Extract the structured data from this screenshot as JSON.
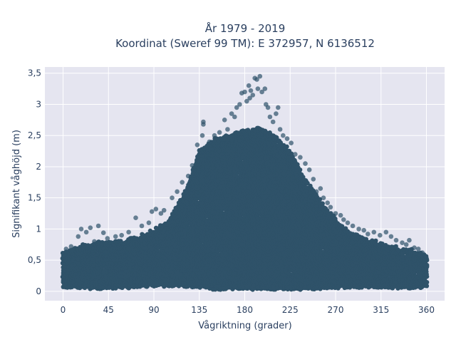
{
  "chart_data": {
    "type": "scatter",
    "title": "År 1979 - 2019",
    "subtitle": "Koordinat (Sweref 99 TM): E 372957, N 6136512",
    "xlabel": "Vågriktning (grader)",
    "ylabel": "Signifikant våghöjd (m)",
    "xlim": [
      -18,
      378
    ],
    "ylim": [
      -0.15,
      3.6
    ],
    "xticks": [
      0,
      45,
      90,
      135,
      180,
      225,
      270,
      315,
      360
    ],
    "xtick_labels": [
      "0",
      "45",
      "90",
      "135",
      "180",
      "225",
      "270",
      "315",
      "360"
    ],
    "yticks": [
      0,
      0.5,
      1,
      1.5,
      2,
      2.5,
      3,
      3.5
    ],
    "ytick_labels": [
      "0",
      "0,5",
      "1",
      "1,5",
      "2",
      "2,5",
      "3",
      "3,5"
    ],
    "grid": true,
    "background": "#e5e5f0",
    "marker_color": "#2f5269",
    "marker_opacity": 0.7,
    "envelope": {
      "x": [
        0,
        15,
        30,
        45,
        60,
        75,
        90,
        105,
        120,
        135,
        150,
        165,
        180,
        195,
        210,
        225,
        240,
        255,
        270,
        285,
        300,
        315,
        330,
        345,
        360
      ],
      "y_max": [
        0.62,
        0.72,
        0.78,
        0.8,
        0.82,
        0.88,
        0.98,
        1.15,
        1.55,
        2.25,
        2.45,
        2.5,
        2.6,
        2.62,
        2.5,
        2.25,
        1.8,
        1.45,
        1.15,
        0.95,
        0.85,
        0.78,
        0.7,
        0.66,
        0.6
      ],
      "y_min": [
        0.08,
        0.06,
        0.06,
        0.06,
        0.07,
        0.08,
        0.1,
        0.1,
        0.1,
        0.08,
        0.05,
        0.05,
        0.05,
        0.05,
        0.05,
        0.05,
        0.05,
        0.06,
        0.07,
        0.08,
        0.08,
        0.08,
        0.07,
        0.07,
        0.08
      ]
    },
    "outliers": [
      {
        "x": 3,
        "y": 0.68
      },
      {
        "x": 8,
        "y": 0.72
      },
      {
        "x": 15,
        "y": 0.88
      },
      {
        "x": 18,
        "y": 1.0
      },
      {
        "x": 23,
        "y": 0.95
      },
      {
        "x": 27,
        "y": 1.02
      },
      {
        "x": 31,
        "y": 0.8
      },
      {
        "x": 35,
        "y": 1.05
      },
      {
        "x": 40,
        "y": 0.94
      },
      {
        "x": 44,
        "y": 0.85
      },
      {
        "x": 52,
        "y": 0.88
      },
      {
        "x": 58,
        "y": 0.9
      },
      {
        "x": 65,
        "y": 0.95
      },
      {
        "x": 72,
        "y": 1.18
      },
      {
        "x": 78,
        "y": 1.05
      },
      {
        "x": 85,
        "y": 1.1
      },
      {
        "x": 88,
        "y": 1.28
      },
      {
        "x": 92,
        "y": 1.32
      },
      {
        "x": 97,
        "y": 1.25
      },
      {
        "x": 100,
        "y": 1.3
      },
      {
        "x": 108,
        "y": 1.5
      },
      {
        "x": 113,
        "y": 1.6
      },
      {
        "x": 118,
        "y": 1.75
      },
      {
        "x": 124,
        "y": 1.85
      },
      {
        "x": 128,
        "y": 2.02
      },
      {
        "x": 133,
        "y": 2.35
      },
      {
        "x": 138,
        "y": 2.5
      },
      {
        "x": 139,
        "y": 2.68
      },
      {
        "x": 139,
        "y": 2.72
      },
      {
        "x": 145,
        "y": 2.4
      },
      {
        "x": 150,
        "y": 2.5
      },
      {
        "x": 155,
        "y": 2.55
      },
      {
        "x": 160,
        "y": 2.75
      },
      {
        "x": 163,
        "y": 2.6
      },
      {
        "x": 167,
        "y": 2.85
      },
      {
        "x": 170,
        "y": 2.8
      },
      {
        "x": 172,
        "y": 2.95
      },
      {
        "x": 175,
        "y": 3.0
      },
      {
        "x": 177,
        "y": 3.18
      },
      {
        "x": 180,
        "y": 3.2
      },
      {
        "x": 182,
        "y": 3.05
      },
      {
        "x": 184,
        "y": 3.3
      },
      {
        "x": 185,
        "y": 3.1
      },
      {
        "x": 186,
        "y": 3.22
      },
      {
        "x": 188,
        "y": 3.15
      },
      {
        "x": 190,
        "y": 3.42
      },
      {
        "x": 192,
        "y": 3.4
      },
      {
        "x": 193,
        "y": 3.25
      },
      {
        "x": 195,
        "y": 3.45
      },
      {
        "x": 197,
        "y": 3.2
      },
      {
        "x": 200,
        "y": 3.25
      },
      {
        "x": 201,
        "y": 3.0
      },
      {
        "x": 203,
        "y": 2.95
      },
      {
        "x": 205,
        "y": 2.8
      },
      {
        "x": 208,
        "y": 2.72
      },
      {
        "x": 211,
        "y": 2.85
      },
      {
        "x": 213,
        "y": 2.95
      },
      {
        "x": 215,
        "y": 2.6
      },
      {
        "x": 218,
        "y": 2.5
      },
      {
        "x": 222,
        "y": 2.45
      },
      {
        "x": 226,
        "y": 2.38
      },
      {
        "x": 230,
        "y": 2.2
      },
      {
        "x": 235,
        "y": 2.15
      },
      {
        "x": 240,
        "y": 2.05
      },
      {
        "x": 244,
        "y": 1.95
      },
      {
        "x": 248,
        "y": 1.8
      },
      {
        "x": 251,
        "y": 1.6
      },
      {
        "x": 255,
        "y": 1.65
      },
      {
        "x": 258,
        "y": 1.5
      },
      {
        "x": 262,
        "y": 1.42
      },
      {
        "x": 265,
        "y": 1.35
      },
      {
        "x": 270,
        "y": 1.25
      },
      {
        "x": 275,
        "y": 1.22
      },
      {
        "x": 278,
        "y": 1.15
      },
      {
        "x": 282,
        "y": 1.1
      },
      {
        "x": 287,
        "y": 1.05
      },
      {
        "x": 293,
        "y": 1.0
      },
      {
        "x": 298,
        "y": 0.98
      },
      {
        "x": 302,
        "y": 0.92
      },
      {
        "x": 308,
        "y": 0.95
      },
      {
        "x": 314,
        "y": 0.9
      },
      {
        "x": 320,
        "y": 0.95
      },
      {
        "x": 325,
        "y": 0.88
      },
      {
        "x": 330,
        "y": 0.82
      },
      {
        "x": 336,
        "y": 0.78
      },
      {
        "x": 340,
        "y": 0.75
      },
      {
        "x": 343,
        "y": 0.82
      },
      {
        "x": 348,
        "y": 0.7
      },
      {
        "x": 352,
        "y": 0.68
      },
      {
        "x": 356,
        "y": 0.62
      }
    ]
  }
}
